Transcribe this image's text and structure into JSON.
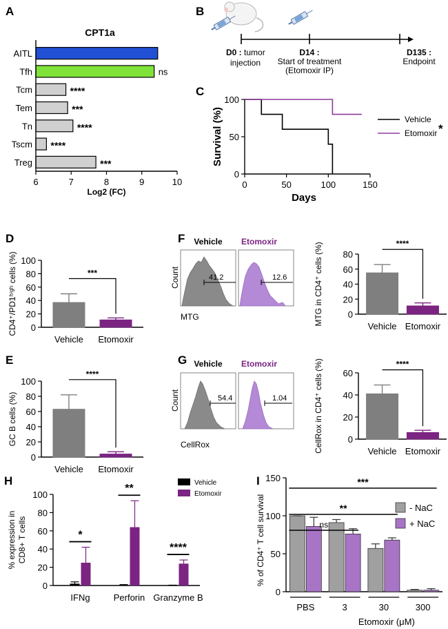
{
  "figure": {
    "panels": [
      "A",
      "B",
      "C",
      "D",
      "E",
      "F",
      "G",
      "H",
      "I"
    ]
  },
  "colors": {
    "aitl": "#2150d4",
    "tfh": "#7fe33a",
    "subset_grey": "#d0d0d0",
    "vehicle_grey": "#7f7f7f",
    "etomoxir_purple": "#7b2482",
    "etomoxir_light": "#b07cc6",
    "hist_grey": "#8a8a8a",
    "hist_purple": "#b489d6"
  },
  "panel_b": {
    "timeline": [
      {
        "day": "D0 :",
        "line1": "tumor",
        "line2": "injection"
      },
      {
        "day": "D14 :",
        "line1": "Start of treatment",
        "line2": "(Etomoxir IP)"
      },
      {
        "day": "D135 :",
        "line1": "Endpoint",
        "line2": ""
      }
    ],
    "icons": [
      "mouse-icon",
      "syringe-icon"
    ]
  },
  "panel_f": {
    "headers": [
      "Vehicle",
      "Etomoxir"
    ],
    "gate_values": [
      "41.2",
      "12.6"
    ],
    "ylabel": "Count",
    "xlabel": "MTG"
  },
  "panel_g": {
    "headers": [
      "Vehicle",
      "Etomoxir"
    ],
    "gate_values": [
      "54.4",
      "1.04"
    ],
    "ylabel": "Count",
    "xlabel": "CellRox"
  },
  "chart_data": [
    {
      "id": "A",
      "type": "bar",
      "orientation": "horizontal",
      "title": "CPT1a",
      "categories": [
        "AITL",
        "Tfh",
        "Tcm",
        "Tem",
        "Tn",
        "Tscm",
        "Treg"
      ],
      "values": [
        9.45,
        9.35,
        6.85,
        6.9,
        7.05,
        6.3,
        7.7
      ],
      "significance": [
        "",
        "ns",
        "****",
        "***",
        "****",
        "****",
        "***"
      ],
      "xlabel": "Log2 (FC)",
      "xlim": [
        6,
        10
      ],
      "xticks": [
        6,
        7,
        8,
        9,
        10
      ]
    },
    {
      "id": "C",
      "type": "line",
      "step": true,
      "ylabel": "Survival (%)",
      "xlabel": "Days",
      "xlim": [
        0,
        150
      ],
      "ylim": [
        0,
        100
      ],
      "xticks": [
        0,
        50,
        100,
        150
      ],
      "yticks": [
        0,
        50,
        100
      ],
      "legend": "right",
      "significance": "*",
      "series": [
        {
          "name": "Vehicle",
          "color": "#000000",
          "x": [
            0,
            20,
            20,
            45,
            45,
            100,
            100,
            105,
            105
          ],
          "y": [
            100,
            100,
            80,
            80,
            60,
            60,
            40,
            40,
            0
          ]
        },
        {
          "name": "Etomoxir",
          "color": "#8e3a9e",
          "x": [
            0,
            105,
            105,
            140
          ],
          "y": [
            100,
            100,
            80,
            80
          ]
        }
      ]
    },
    {
      "id": "D",
      "type": "bar",
      "categories": [
        "Vehicle",
        "Etomoxir"
      ],
      "values": [
        37,
        11
      ],
      "errors": [
        13,
        3
      ],
      "ylabel": "CD4⁺/PD1ʰⁱᵍʰ cells (%)",
      "ylim": [
        0,
        100
      ],
      "yticks": [
        0,
        20,
        40,
        60,
        80,
        100
      ],
      "significance": "***"
    },
    {
      "id": "E",
      "type": "bar",
      "categories": [
        "Vehicle",
        "Etomoxir"
      ],
      "values": [
        63,
        4
      ],
      "errors": [
        19,
        3
      ],
      "ylabel": "GC B cells (%)",
      "ylim": [
        0,
        100
      ],
      "yticks": [
        0,
        20,
        40,
        60,
        80,
        100
      ],
      "significance": "****"
    },
    {
      "id": "F",
      "type": "bar",
      "categories": [
        "Vehicle",
        "Etomoxir"
      ],
      "values": [
        55,
        11
      ],
      "errors": [
        11,
        4
      ],
      "ylabel": "MTG in CD4⁺ cells (%)",
      "ylim": [
        0,
        80
      ],
      "yticks": [
        0,
        20,
        40,
        60,
        80
      ],
      "significance": "****"
    },
    {
      "id": "G",
      "type": "bar",
      "categories": [
        "Vehicle",
        "Etomoxir"
      ],
      "values": [
        41,
        6
      ],
      "errors": [
        8,
        2
      ],
      "ylabel": "CellRox in CD4⁺ cells (%)",
      "ylim": [
        0,
        60
      ],
      "yticks": [
        0,
        20,
        40,
        60
      ],
      "significance": "****"
    },
    {
      "id": "H",
      "type": "bar",
      "categories": [
        "IFNg",
        "Perforin",
        "Granzyme B"
      ],
      "series": [
        {
          "name": "Vehicle",
          "color": "#000000",
          "values": [
            2,
            0.5,
            0.2
          ],
          "errors": [
            2,
            0.5,
            0.2
          ]
        },
        {
          "name": "Etomoxir",
          "color": "#7b2482",
          "values": [
            25,
            64,
            24
          ],
          "errors": [
            17,
            29,
            4
          ]
        }
      ],
      "ylabel": "% expression in CD8+ T cells",
      "ylim": [
        0,
        100
      ],
      "yticks": [
        0,
        20,
        40,
        60,
        80,
        100
      ],
      "significance": [
        "*",
        "**",
        "****"
      ],
      "legend": "top-right"
    },
    {
      "id": "I",
      "type": "bar",
      "categories": [
        "PBS",
        "3",
        "30",
        "300"
      ],
      "group_label": "Etomoxir (μM)",
      "series": [
        {
          "name": "- NaC",
          "color": "#a0a0a0",
          "values": [
            100,
            91,
            57,
            2
          ],
          "errors": [
            0,
            4,
            6,
            1
          ]
        },
        {
          "name": "+ NaC",
          "color": "#a874c6",
          "values": [
            86,
            76,
            68,
            2
          ],
          "errors": [
            12,
            7,
            3,
            2
          ]
        }
      ],
      "ylabel": "% of CD4⁺ T cell survival",
      "ylim": [
        0,
        150
      ],
      "yticks": [
        0,
        50,
        100,
        150
      ],
      "comparisons": [
        {
          "from": "PBS",
          "to": "3",
          "label": "ns"
        },
        {
          "from": "PBS",
          "to": "30",
          "label": "**"
        },
        {
          "from": "PBS",
          "to": "300",
          "label": "***"
        }
      ],
      "legend": "top-right"
    }
  ]
}
